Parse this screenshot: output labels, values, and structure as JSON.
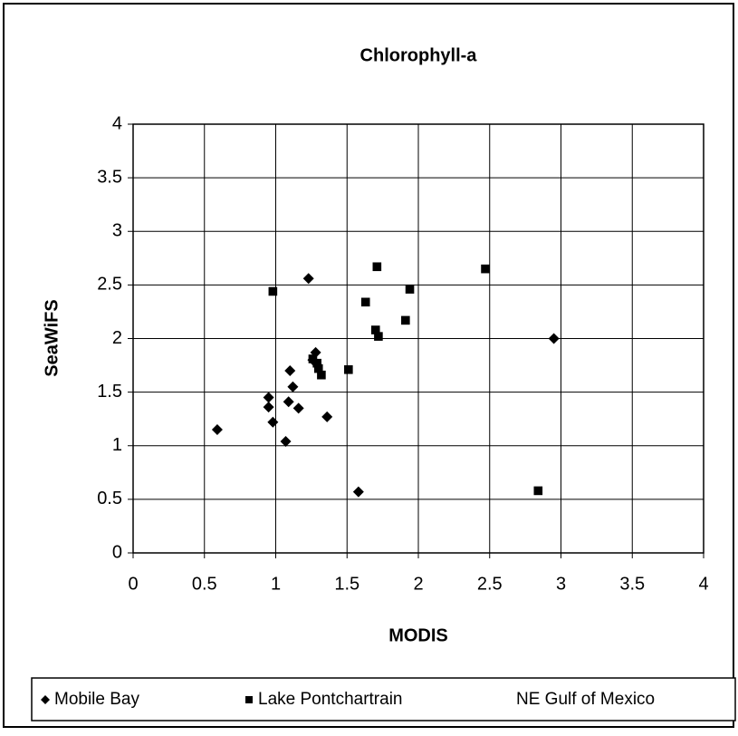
{
  "chart_data": {
    "type": "scatter",
    "title": "Chlorophyll-a",
    "x_label": "MODIS",
    "y_label": "SeaWiFS",
    "xlim": [
      0,
      4
    ],
    "ylim": [
      0,
      4
    ],
    "xticks": [
      0,
      0.5,
      1,
      1.5,
      2,
      2.5,
      3,
      3.5,
      4
    ],
    "yticks": [
      0,
      0.5,
      1,
      1.5,
      2,
      2.5,
      3,
      3.5,
      4
    ],
    "grid": true,
    "legend": "bottom",
    "series": [
      {
        "name": "Mobile Bay",
        "color": "#000000",
        "marker": "diamond",
        "x": [
          0.59,
          0.95,
          0.95,
          0.98,
          1.07,
          1.1,
          1.09,
          1.12,
          1.16,
          1.23,
          1.28,
          1.26,
          1.36,
          1.58,
          2.95
        ],
        "values": [
          1.15,
          1.45,
          1.36,
          1.22,
          1.04,
          1.7,
          1.41,
          1.55,
          1.35,
          2.56,
          1.87,
          1.8,
          1.27,
          0.57,
          2.0
        ]
      },
      {
        "name": "Lake Pontchartrain",
        "color": "#000000",
        "marker": "square",
        "x": [
          0.98,
          1.26,
          1.29,
          1.3,
          1.32,
          1.51,
          1.63,
          1.71,
          1.7,
          1.72,
          1.91,
          1.94,
          2.47,
          2.84
        ],
        "values": [
          2.44,
          1.81,
          1.77,
          1.72,
          1.66,
          1.71,
          2.34,
          2.67,
          2.08,
          2.02,
          2.17,
          2.46,
          2.65,
          0.58
        ]
      },
      {
        "name": "NE Gulf of Mexico",
        "color": "#ffffff",
        "marker": "triangle",
        "x": [],
        "values": []
      }
    ]
  }
}
